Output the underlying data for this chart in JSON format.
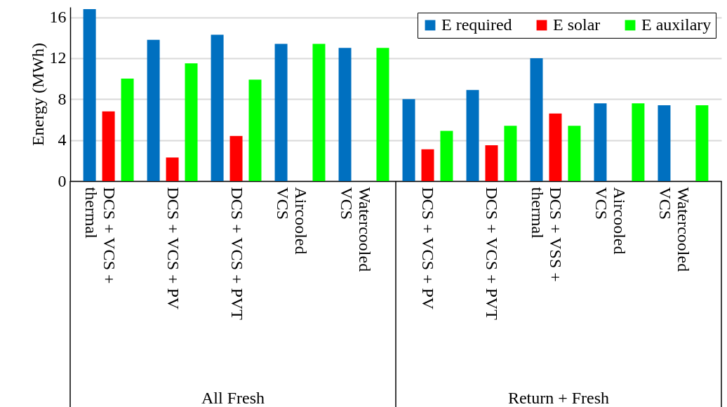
{
  "chart_data": {
    "type": "bar",
    "ylabel": "Energy (MWh)",
    "categories": [
      "DCS + VCS +\nthermal",
      "DCS + VCS + PV",
      "DCS + VCS + PVT",
      "Aircooled\nVCS",
      "Watercooled\nVCS",
      "DCS + VCS + PV",
      "DCS + VCS + PVT",
      "DCS + VSS +\nthermal",
      "Aircooled\nVCS",
      "Watercooled\nVCS"
    ],
    "series": [
      {
        "name": "E required",
        "color": "#0070c0",
        "values": [
          16.8,
          13.8,
          14.3,
          13.4,
          13.0,
          8.0,
          8.9,
          12.0,
          7.6,
          7.4
        ]
      },
      {
        "name": "E solar",
        "color": "#ff0000",
        "values": [
          6.8,
          2.3,
          4.4,
          null,
          null,
          3.1,
          3.5,
          6.6,
          null,
          null
        ]
      },
      {
        "name": "E auxilary",
        "color": "#00ff00",
        "values": [
          10.0,
          11.5,
          9.9,
          13.4,
          13.0,
          4.9,
          5.4,
          5.4,
          7.6,
          7.4
        ]
      }
    ],
    "ylim": [
      0,
      17
    ],
    "yticks": [
      0,
      4,
      8,
      12,
      16
    ],
    "grid": true,
    "legend": "top right",
    "annotations": [
      "All Fresh",
      "Return + Fresh"
    ]
  }
}
